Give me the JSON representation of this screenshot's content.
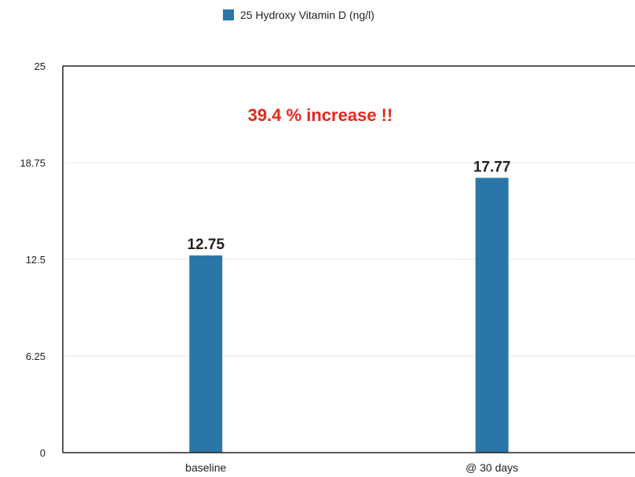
{
  "chart_data": {
    "type": "bar",
    "categories": [
      "baseline",
      "@ 30 days"
    ],
    "series": [
      {
        "name": "25 Hydroxy Vitamin D (ng/l)",
        "values": [
          12.75,
          17.77
        ]
      }
    ],
    "data_labels": [
      "12.75",
      "17.77"
    ],
    "ylim": [
      0,
      25
    ],
    "yticks": [
      "0",
      "6.25",
      "12.5",
      "18.75",
      "25"
    ],
    "grid": true,
    "legend": "top-center",
    "annotation": "39.4 % increase !!",
    "colors": {
      "bar": "#2a76a8",
      "annotation": "#e8261c",
      "grid": "#e6e6e6",
      "axis": "#222222"
    }
  }
}
